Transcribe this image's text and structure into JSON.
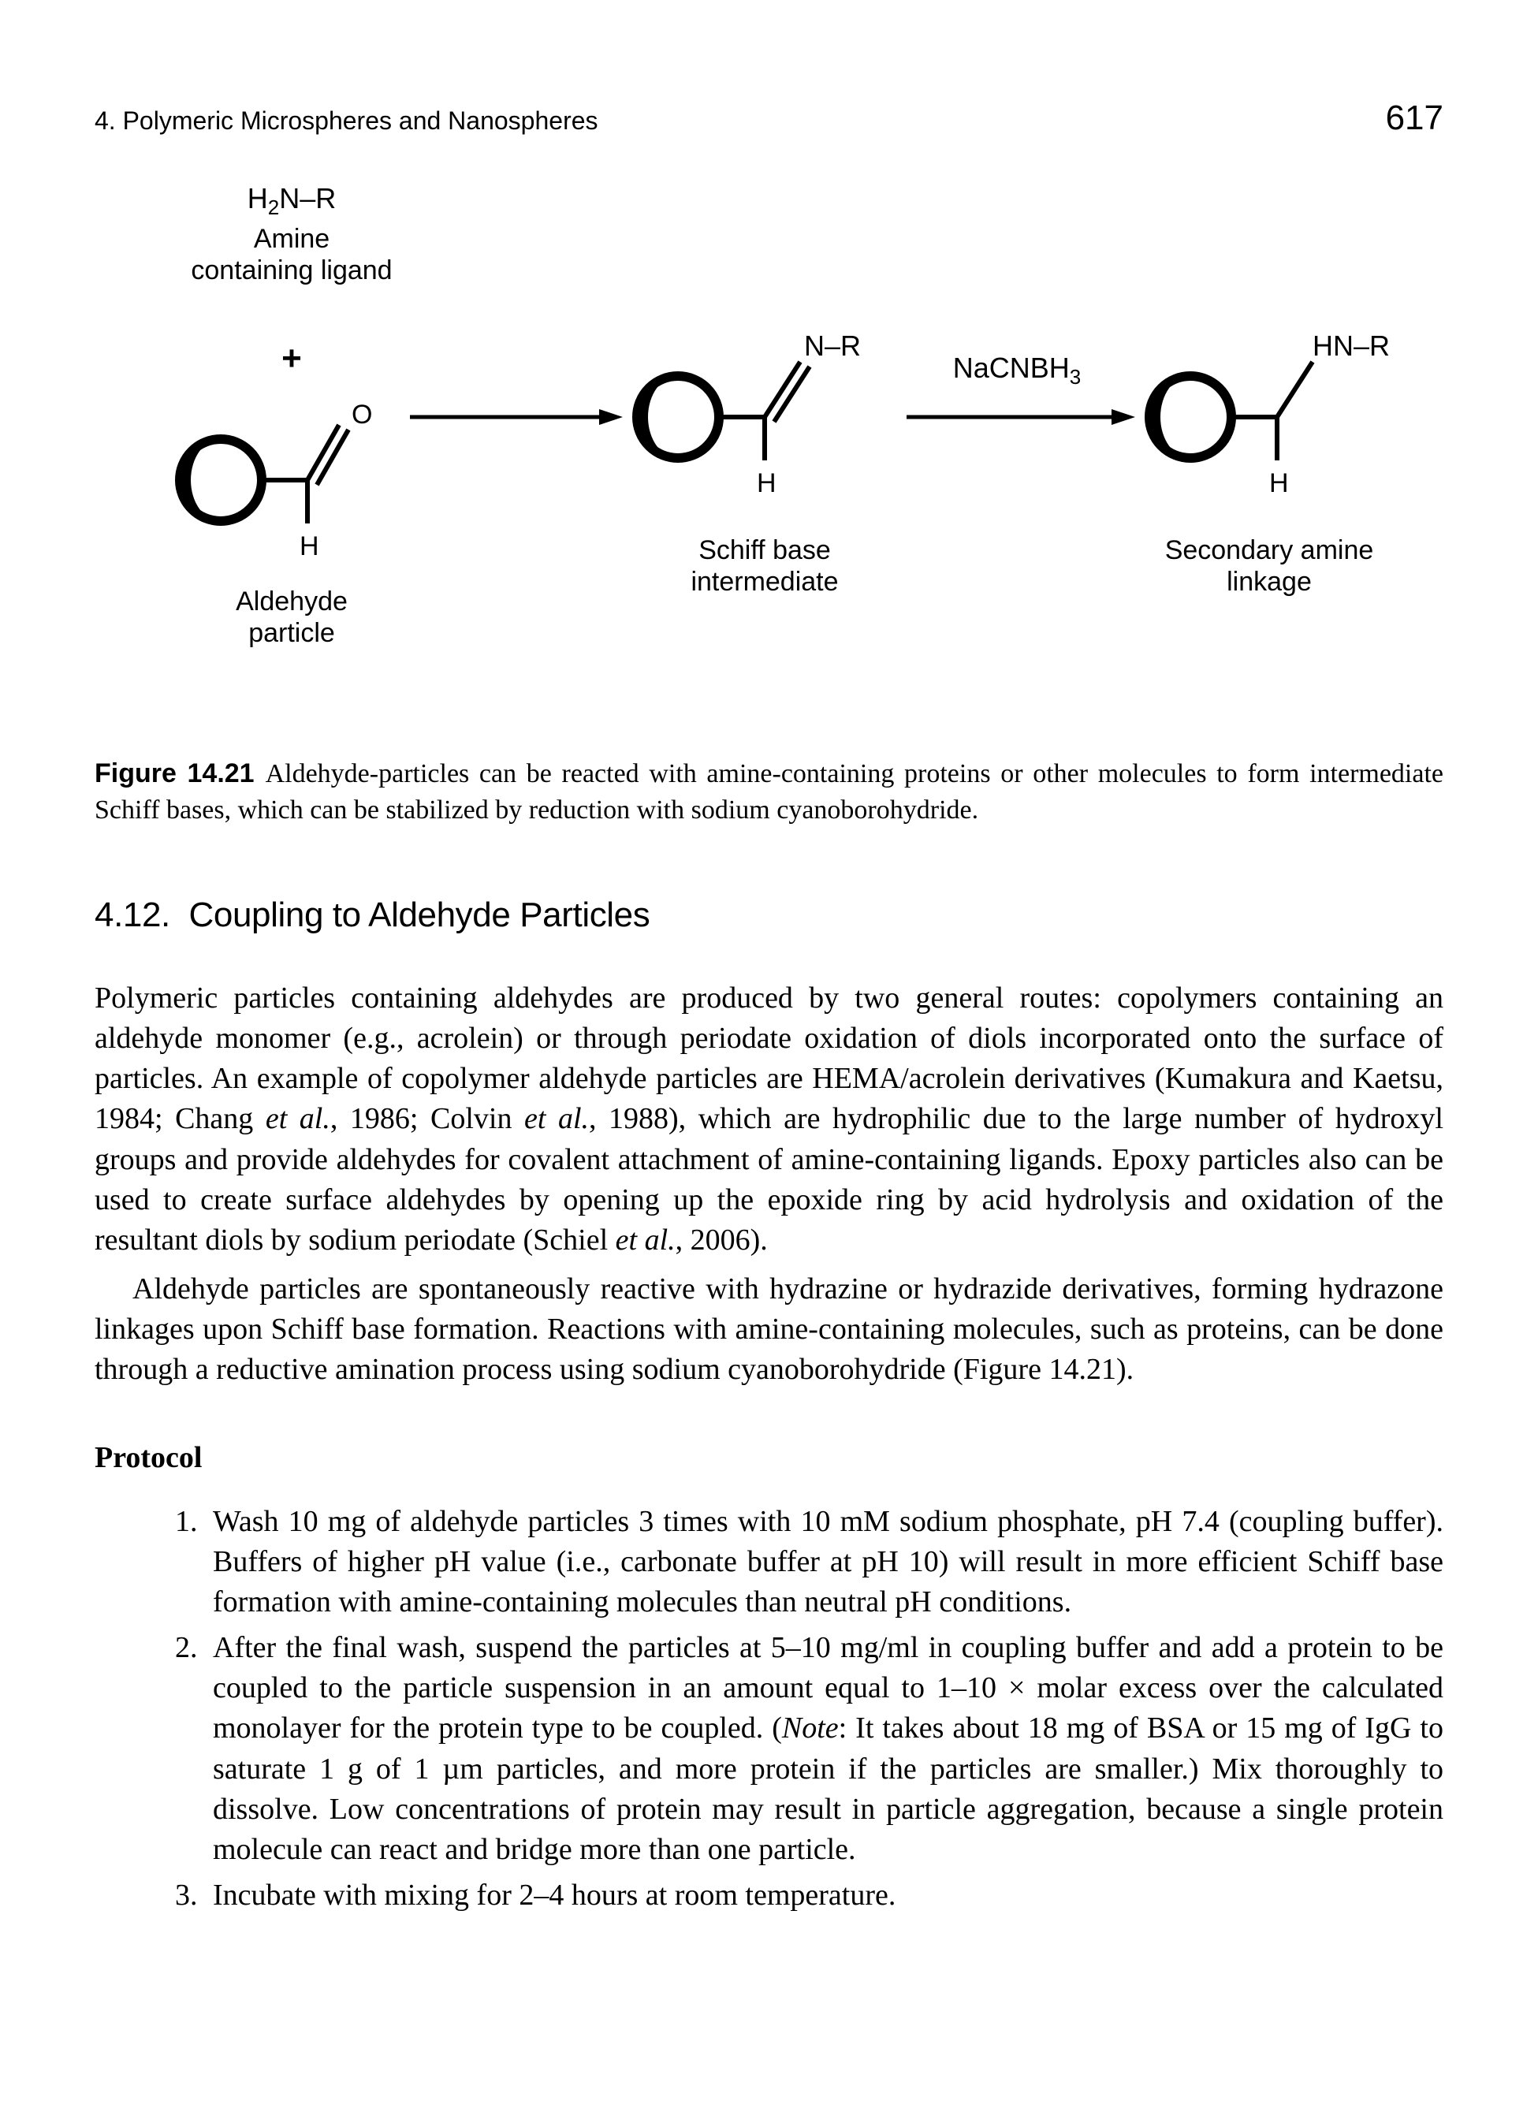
{
  "header": {
    "left": "4.  Polymeric Microspheres and Nanospheres",
    "page_number": "617"
  },
  "scheme": {
    "colors": {
      "line": "#000000",
      "bg": "#ffffff"
    },
    "font": {
      "family": "Helvetica",
      "label_size": 34,
      "sublabel_size": 34
    },
    "reactants": {
      "amine": {
        "formula_parts": [
          "H",
          "2",
          "N–R"
        ],
        "label_l1": "Amine",
        "label_l2": "containing ligand"
      },
      "plus": "+",
      "aldehyde": {
        "label_l1": "Aldehyde",
        "label_l2": "particle",
        "atom_o": "O",
        "atom_h": "H"
      }
    },
    "arrows": {
      "a1": "→",
      "a2_label": "NaCNBH",
      "a2_label_sub": "3"
    },
    "intermediate": {
      "top": "N–R",
      "bottom": "H",
      "label_l1": "Schiff base",
      "label_l2": "intermediate"
    },
    "product": {
      "top": "HN–R",
      "bottom": "H",
      "label_l1": "Secondary amine",
      "label_l2": "linkage"
    }
  },
  "figure_caption": {
    "label": "Figure 14.21",
    "text": "Aldehyde-particles can be reacted with amine-containing proteins or other molecules to form intermediate Schiff bases, which can be stabilized by reduction with sodium cyanoborohydride."
  },
  "section": {
    "number": "4.12.",
    "title": "Coupling to Aldehyde Particles"
  },
  "paragraphs": {
    "p1": "Polymeric particles containing aldehydes are produced by two general routes: copolymers containing an aldehyde monomer (e.g., acrolein) or through periodate oxidation of diols incorporated onto the surface of particles. An example of copolymer aldehyde particles are HEMA/acrolein derivatives (Kumakura and Kaetsu, 1984; Chang et al., 1986; Colvin et al., 1988), which are hydrophilic due to the large number of hydroxyl groups and provide aldehydes for covalent attachment of amine-containing ligands. Epoxy particles also can be used to create surface aldehydes by opening up the epoxide ring by acid hydrolysis and oxidation of the resultant diols by sodium periodate (Schiel et al., 2006).",
    "p2": "Aldehyde particles are spontaneously reactive with hydrazine or hydrazide derivatives, forming hydrazone linkages upon Schiff base formation. Reactions with amine-containing molecules, such as proteins, can be done through a reductive amination process using sodium cyanoborohydride (Figure 14.21)."
  },
  "protocol": {
    "heading": "Protocol",
    "items": [
      "Wash 10 mg of aldehyde particles 3 times with 10 mM sodium phosphate, pH 7.4 (coupling buffer). Buffers of higher pH value (i.e., carbonate buffer at pH 10) will result in more efficient Schiff base formation with amine-containing molecules than neutral pH conditions.",
      "After the final wash, suspend the particles at 5–10 mg/ml in coupling buffer and add a protein to be coupled to the particle suspension in an amount equal to 1–10 × molar excess over the calculated monolayer for the protein type to be coupled. (Note: It takes about 18 mg of BSA or 15 mg of IgG to saturate 1 g of 1 µm particles, and more protein if the particles are smaller.) Mix thoroughly to dissolve. Low concentrations of protein may result in particle aggregation, because a single protein molecule can react and bridge more than one particle.",
      "Incubate with mixing for 2–4 hours at room temperature."
    ]
  }
}
